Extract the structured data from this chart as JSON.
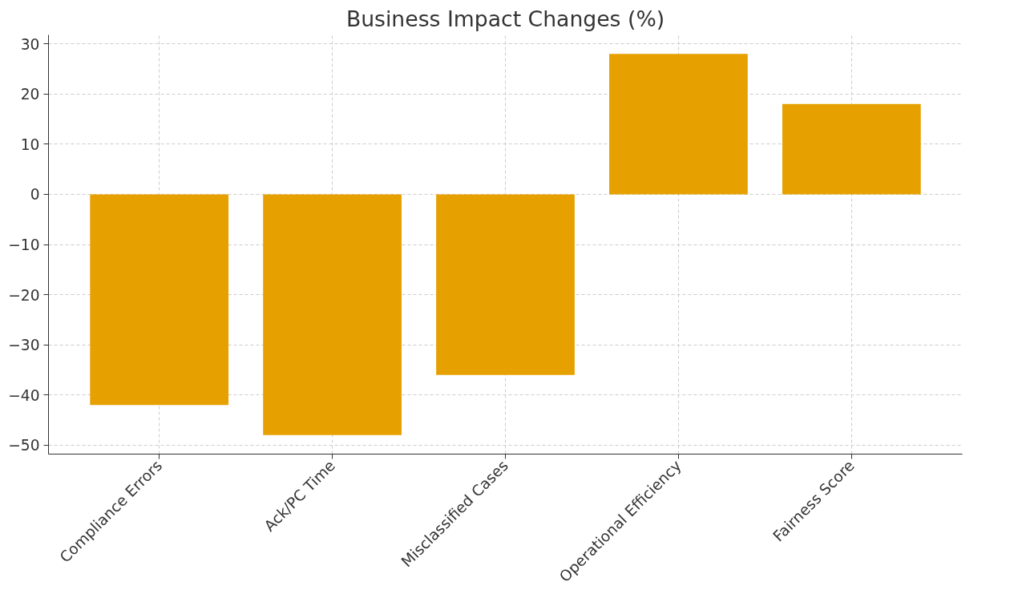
{
  "chart_data": {
    "type": "bar",
    "title": "Business Impact Changes (%)",
    "categories": [
      "Compliance Errors",
      "Ack/PC Time",
      "Misclassified Cases",
      "Operational Efficiency",
      "Fairness Score"
    ],
    "values": [
      -42,
      -48,
      -36,
      28,
      18
    ],
    "color": "#e6a000",
    "ylim": [
      -51.8,
      31.8
    ],
    "yticks": [
      -50,
      -40,
      -30,
      -20,
      -10,
      0,
      10,
      20,
      30
    ],
    "grid": true
  }
}
